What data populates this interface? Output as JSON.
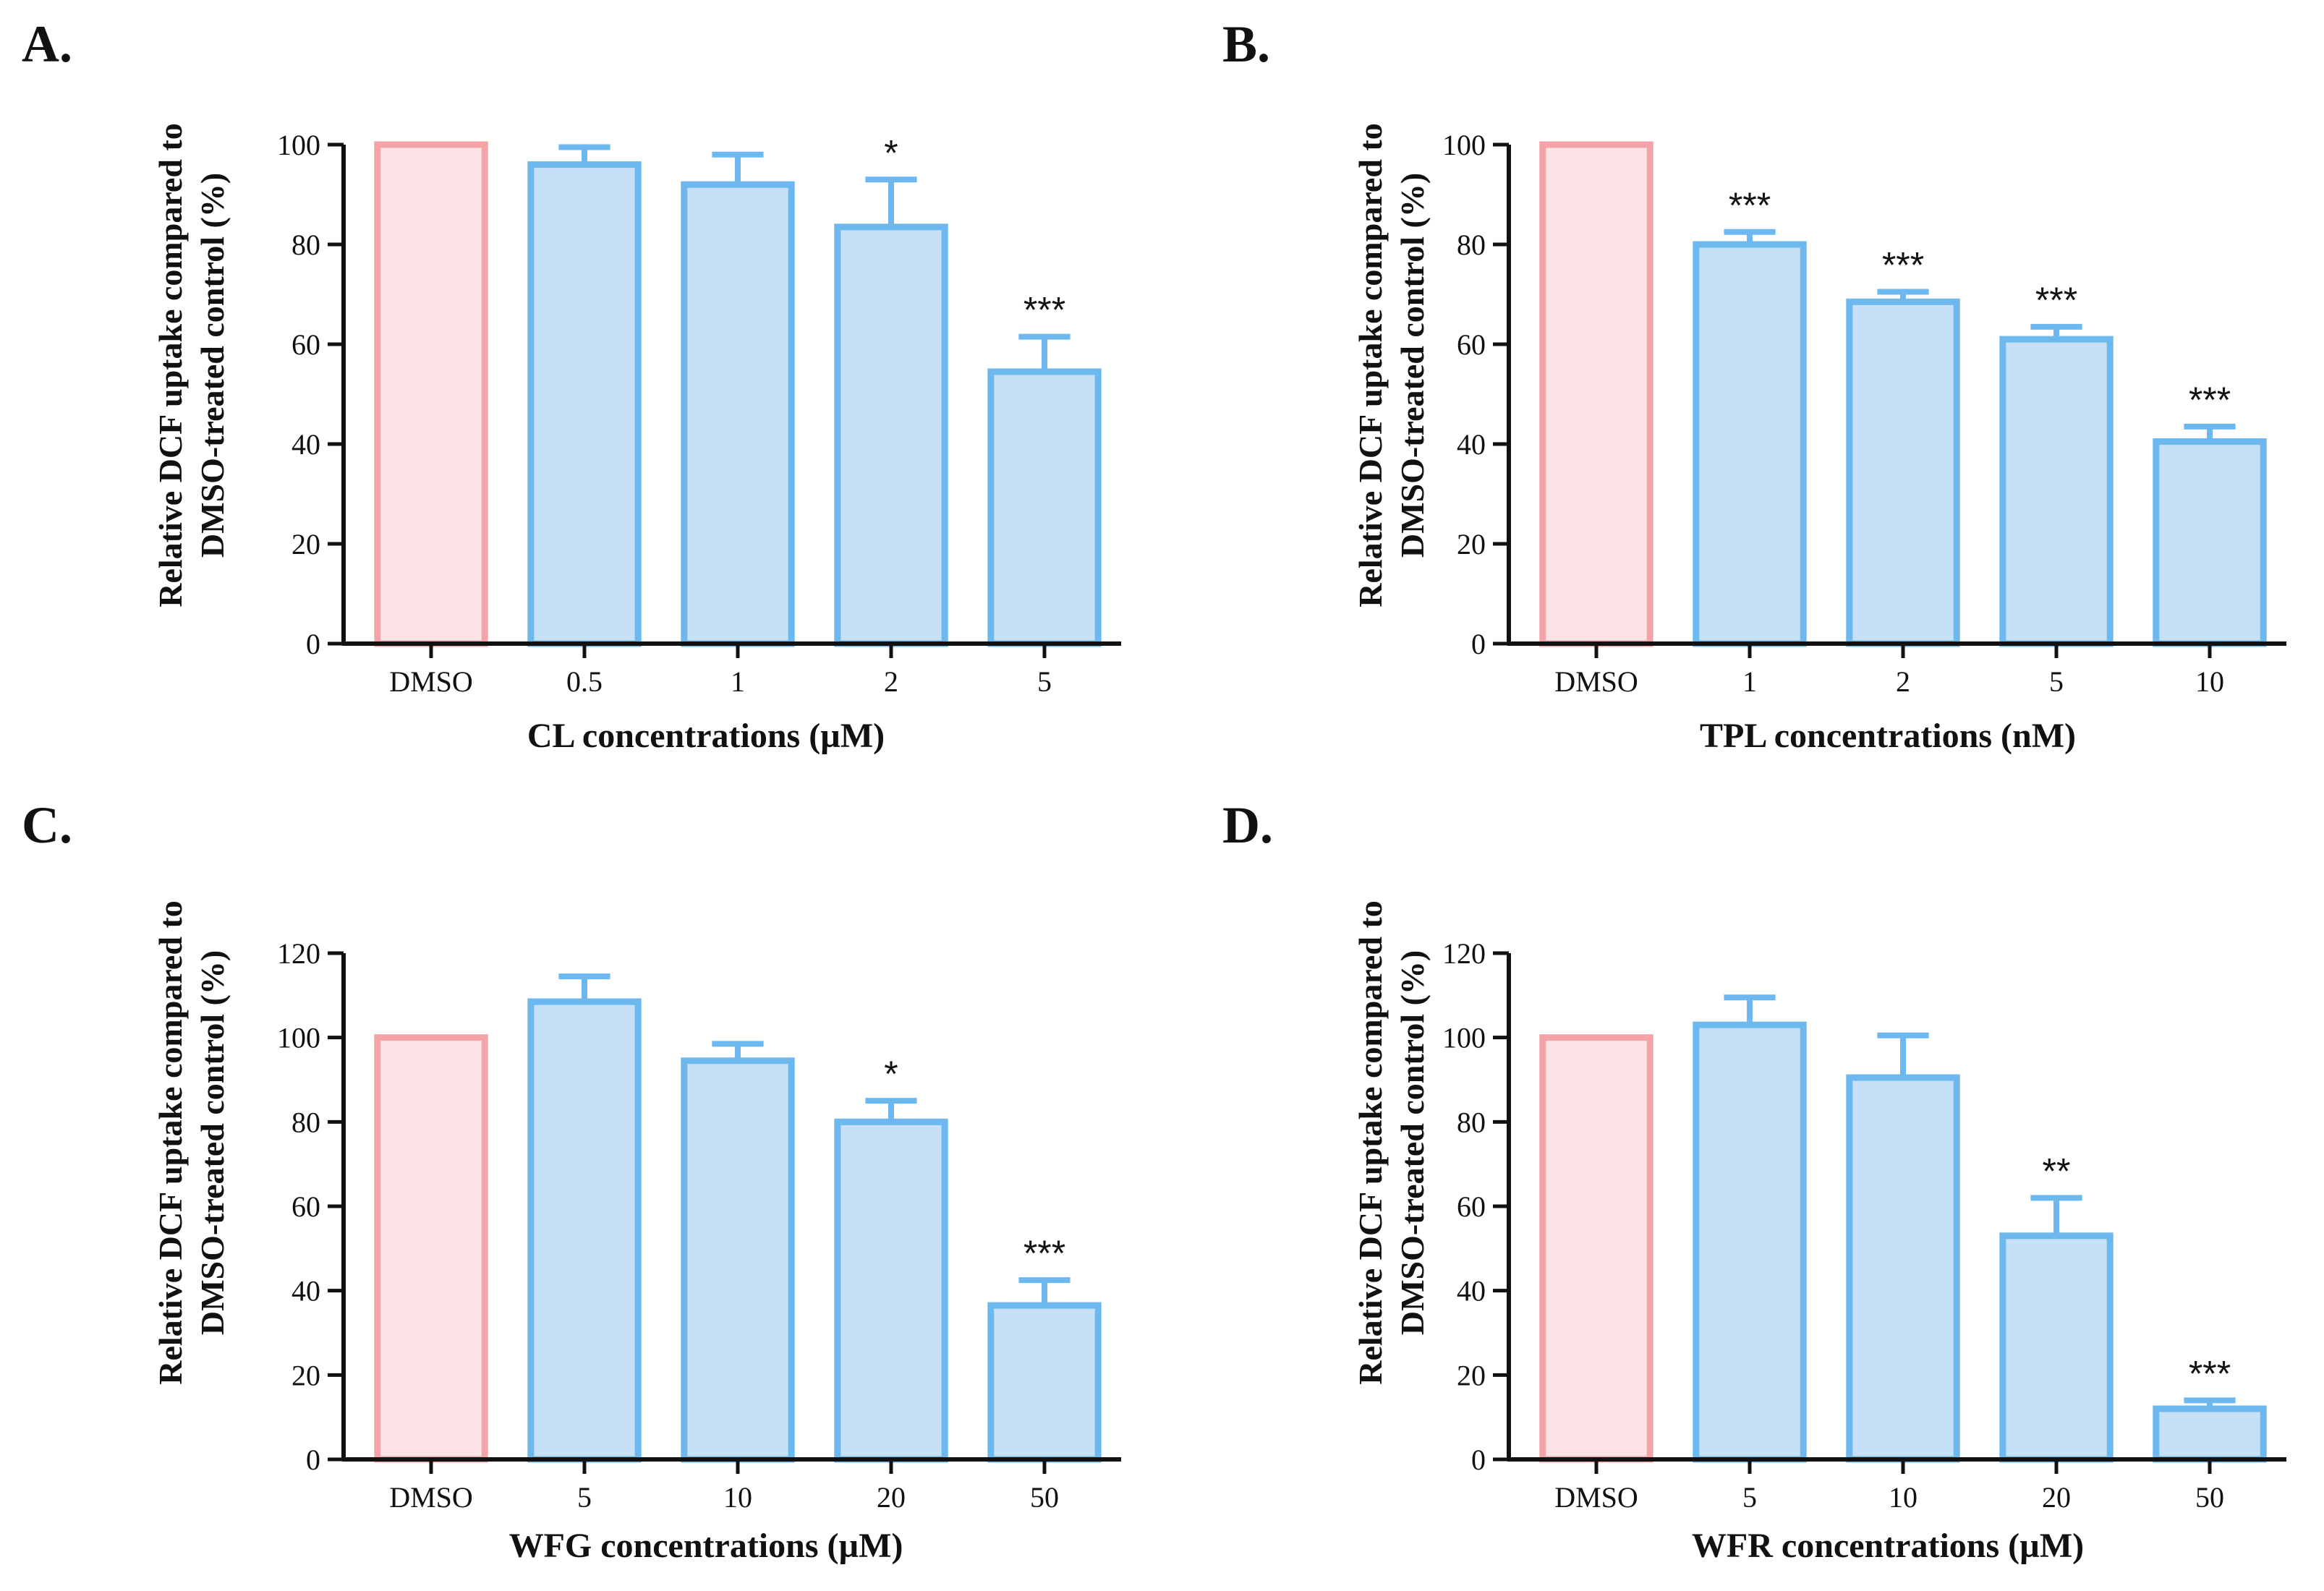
{
  "chart_data": [
    {
      "type": "bar",
      "panel_label": "A.",
      "title": "",
      "ylabel_line1": "Relative DCF uptake compared to",
      "ylabel_line2": "DMSO-treated control (%)",
      "xlabel": "CL concentrations  (µM)",
      "categories": [
        "DMSO",
        "0.5",
        "1",
        "2",
        "5"
      ],
      "values": [
        100,
        96,
        92,
        83.5,
        54.5
      ],
      "errors": [
        0,
        3.5,
        6,
        9.5,
        7
      ],
      "significance": [
        "",
        "",
        "",
        "*",
        "***"
      ],
      "ylim": [
        0,
        100
      ],
      "yticks": [
        0,
        20,
        40,
        60,
        80,
        100
      ],
      "legend": "none"
    },
    {
      "type": "bar",
      "panel_label": "B.",
      "title": "",
      "ylabel_line1": "Relative DCF uptake compared to",
      "ylabel_line2": "DMSO-treated control (%)",
      "xlabel": "TPL concentrations  (nM)",
      "categories": [
        "DMSO",
        "1",
        "2",
        "5",
        "10"
      ],
      "values": [
        100,
        80,
        68.5,
        61,
        40.5
      ],
      "errors": [
        0,
        2.5,
        2,
        2.5,
        3
      ],
      "significance": [
        "",
        "***",
        "***",
        "***",
        "***"
      ],
      "ylim": [
        0,
        100
      ],
      "yticks": [
        0,
        20,
        40,
        60,
        80,
        100
      ],
      "legend": "none"
    },
    {
      "type": "bar",
      "panel_label": "C.",
      "title": "",
      "ylabel_line1": "Relative DCF uptake compared to",
      "ylabel_line2": "DMSO-treated control (%)",
      "xlabel": "WFG concentrations  (µM)",
      "categories": [
        "DMSO",
        "5",
        "10",
        "20",
        "50"
      ],
      "values": [
        100,
        108.5,
        94.5,
        80,
        36.5
      ],
      "errors": [
        0,
        6,
        4,
        5,
        6
      ],
      "significance": [
        "",
        "",
        "",
        "*",
        "***"
      ],
      "ylim": [
        0,
        120
      ],
      "yticks": [
        0,
        20,
        40,
        60,
        80,
        100,
        120
      ],
      "legend": "none"
    },
    {
      "type": "bar",
      "panel_label": "D.",
      "title": "",
      "ylabel_line1": "Relative DCF uptake compared to",
      "ylabel_line2": "DMSO-treated control (%)",
      "xlabel": "WFR concentrations  (µM)",
      "categories": [
        "DMSO",
        "5",
        "10",
        "20",
        "50"
      ],
      "values": [
        100,
        103,
        90.5,
        53,
        12
      ],
      "errors": [
        0,
        6.5,
        10,
        9,
        2
      ],
      "significance": [
        "",
        "",
        "",
        "**",
        "***"
      ],
      "ylim": [
        0,
        120
      ],
      "yticks": [
        0,
        20,
        40,
        60,
        80,
        100,
        120
      ],
      "legend": "none"
    }
  ],
  "colors": {
    "control_fill": "#fde3e5",
    "control_stroke": "#f4a4a8",
    "treatment_fill": "#c6e0f7",
    "treatment_stroke": "#6db8ef",
    "axis": "#111111"
  }
}
